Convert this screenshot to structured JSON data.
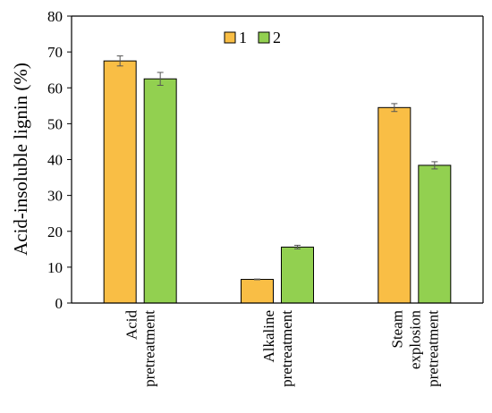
{
  "chart_data": {
    "type": "bar",
    "title": "",
    "xlabel": "",
    "ylabel": "Acid-insoluble lignin (%)",
    "ylim": [
      0,
      80
    ],
    "yticks": [
      "0",
      "10",
      "20",
      "30",
      "40",
      "50",
      "60",
      "70",
      "80"
    ],
    "categories": [
      [
        "Acid",
        "pretreatment"
      ],
      [
        "Alkaline",
        "pretreatment"
      ],
      [
        "Steam",
        "explosion",
        "pretreatment"
      ]
    ],
    "series": [
      {
        "name": "1",
        "color": "#F9BE45",
        "values": [
          67.5,
          6.6,
          54.5
        ],
        "errors": [
          1.4,
          0.1,
          1.1
        ]
      },
      {
        "name": "2",
        "color": "#92D050",
        "values": [
          62.5,
          15.6,
          38.4
        ],
        "errors": [
          1.8,
          0.5,
          1.0
        ]
      }
    ],
    "grid": false,
    "legend": "top-center",
    "error_bars": true
  }
}
